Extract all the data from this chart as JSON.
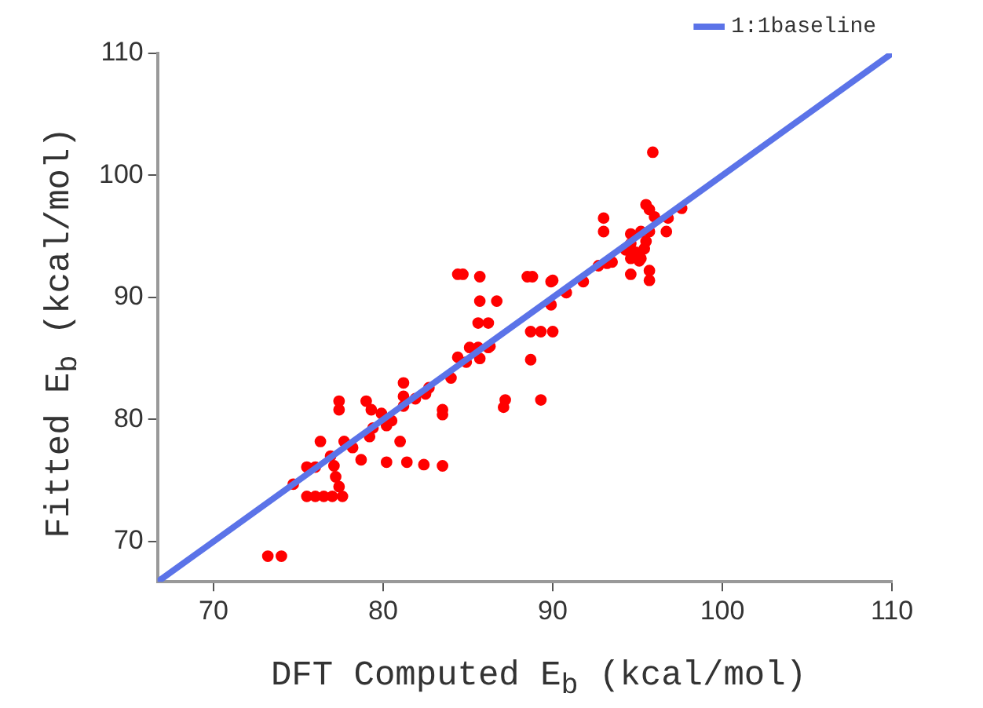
{
  "chart_data": {
    "type": "scatter",
    "xlabel": "DFT Computed E$_{b}$ (kcal/mol)",
    "ylabel": "Fitted E$_{b}$ (kcal/mol)",
    "xlim": [
      66.7,
      110
    ],
    "ylim": [
      66.7,
      110
    ],
    "xticks": [
      70,
      80,
      90,
      100,
      110
    ],
    "yticks": [
      70,
      80,
      90,
      100,
      110
    ],
    "grid": false,
    "legend": "top right",
    "series": [
      {
        "color": "#ff0000",
        "marker": "circle",
        "x": [
          73.2,
          74.0,
          74.7,
          75.5,
          76.0,
          76.5,
          77.0,
          77.6,
          75.5,
          76.0,
          76.3,
          76.9,
          77.2,
          77.4,
          77.1,
          77.4,
          77.4,
          77.7,
          78.2,
          78.7,
          79.0,
          79.3,
          79.2,
          79.4,
          79.9,
          80.2,
          80.5,
          80.2,
          81.2,
          81.2,
          81.2,
          81.4,
          81.0,
          81.9,
          82.5,
          82.7,
          82.4,
          83.5,
          83.5,
          83.5,
          84.0,
          84.4,
          84.9,
          84.4,
          84.7,
          85.7,
          85.7,
          86.7,
          85.6,
          86.2,
          85.6,
          85.1,
          86.2,
          85.7,
          86.3,
          87.2,
          87.1,
          88.5,
          88.8,
          88.7,
          95.9,
          95.5,
          95.7,
          96.0,
          96.8,
          97.6,
          93.0,
          93.0,
          94.6,
          95.2,
          95.7,
          94.3,
          94.6,
          94.9,
          95.2,
          95.5,
          94.6,
          95.1,
          95.4,
          96.7,
          94.6,
          95.7,
          95.7,
          92.7,
          93.2,
          93.5,
          91.8,
          90.8,
          90.0,
          89.9,
          89.9,
          89.3,
          90.0,
          88.7,
          89.3
        ],
        "values": [
          68.8,
          68.8,
          74.7,
          73.7,
          73.7,
          73.7,
          73.7,
          73.7,
          76.1,
          76.1,
          78.2,
          77.0,
          75.3,
          74.5,
          76.2,
          81.5,
          80.8,
          78.2,
          77.7,
          76.7,
          81.5,
          80.8,
          78.6,
          79.3,
          80.5,
          79.5,
          79.9,
          76.5,
          83.0,
          81.9,
          81.1,
          76.5,
          78.2,
          81.7,
          82.1,
          82.6,
          76.3,
          80.8,
          80.4,
          76.2,
          83.4,
          85.1,
          84.7,
          91.9,
          91.9,
          91.7,
          89.7,
          89.7,
          87.9,
          87.9,
          85.9,
          85.9,
          85.9,
          85.0,
          86.0,
          81.6,
          81.0,
          91.7,
          91.7,
          87.2,
          101.9,
          97.6,
          97.2,
          96.6,
          96.5,
          97.3,
          96.5,
          95.4,
          95.2,
          95.4,
          95.4,
          93.9,
          94.4,
          93.7,
          93.2,
          94.6,
          93.2,
          93.0,
          94.0,
          95.4,
          91.9,
          92.2,
          91.4,
          92.6,
          92.8,
          92.9,
          91.3,
          90.4,
          91.4,
          91.3,
          89.4,
          87.2,
          87.2,
          84.9,
          81.6
        ]
      },
      {
        "type": "line",
        "name": "1:1baseline",
        "color": "#5b73e8",
        "x": [
          66.7,
          110
        ],
        "values": [
          66.7,
          110
        ]
      }
    ]
  }
}
